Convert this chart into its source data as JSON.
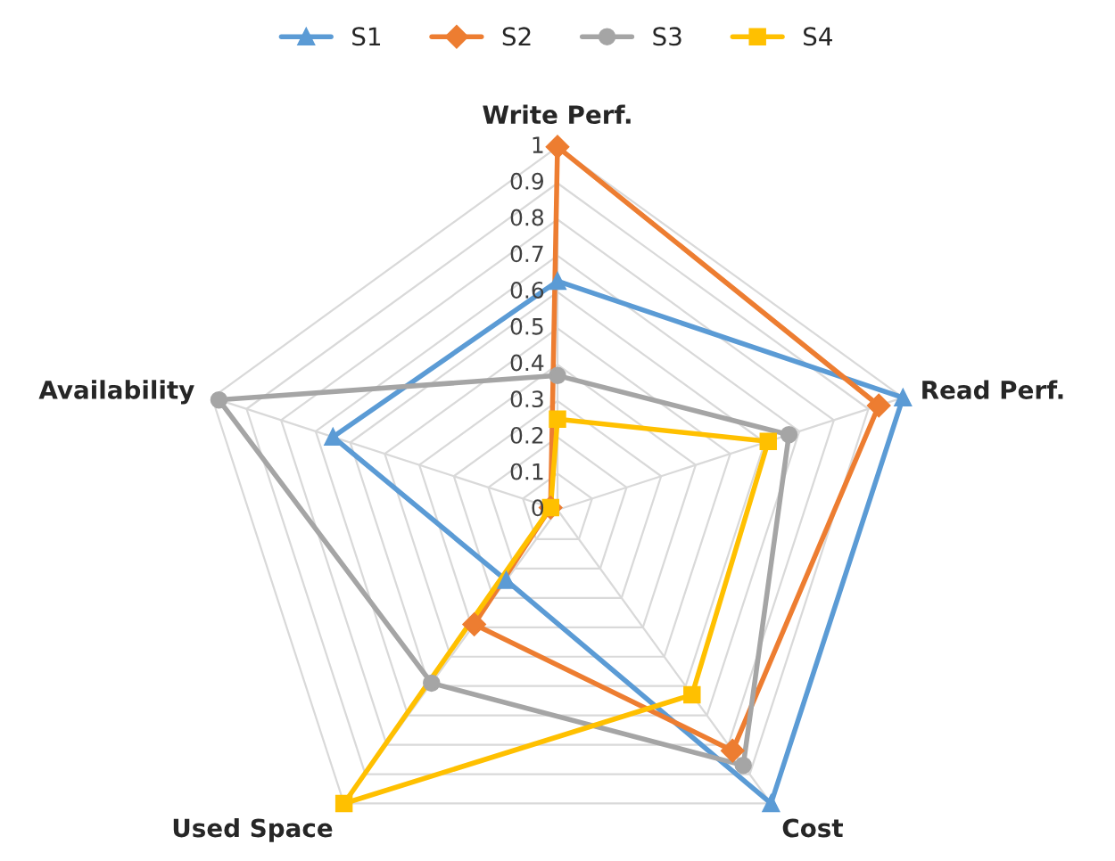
{
  "chart_data": {
    "type": "radar",
    "categories": [
      "Write Perf.",
      "Read Perf.",
      "Cost",
      "Used Space",
      "Availability"
    ],
    "series": [
      {
        "name": "S1",
        "color": "#5b9bd5",
        "marker": "triangle",
        "values": [
          0.63,
          1.0,
          1.0,
          0.24,
          0.65
        ]
      },
      {
        "name": "S2",
        "color": "#ed7d31",
        "marker": "diamond",
        "values": [
          1.0,
          0.93,
          0.82,
          0.39,
          0.02
        ]
      },
      {
        "name": "S3",
        "color": "#a5a5a5",
        "marker": "circle",
        "values": [
          0.37,
          0.67,
          0.87,
          0.59,
          0.98
        ]
      },
      {
        "name": "S4",
        "color": "#ffc000",
        "marker": "square",
        "values": [
          0.25,
          0.61,
          0.63,
          1.0,
          0.02
        ]
      }
    ],
    "ylim": [
      0,
      1
    ],
    "yticks": [
      0,
      0.1,
      0.2,
      0.3,
      0.4,
      0.5,
      0.6,
      0.7,
      0.8,
      0.9,
      1
    ],
    "grid": true,
    "legend": "top"
  }
}
